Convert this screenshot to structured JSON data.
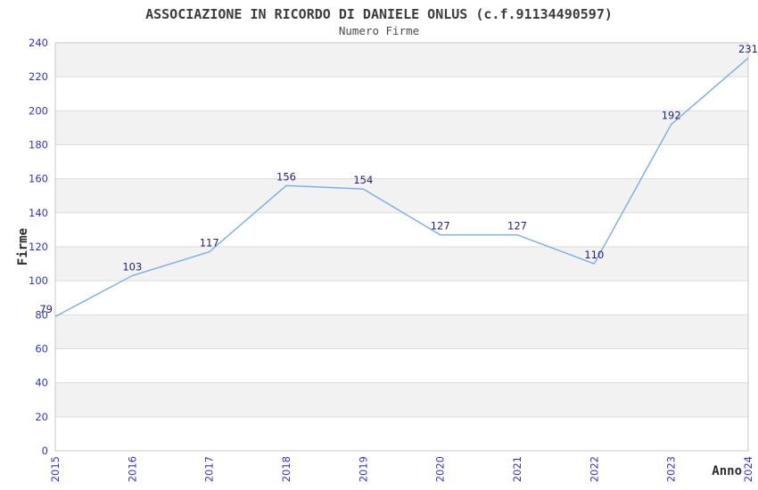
{
  "chart_data": {
    "type": "line",
    "title": "ASSOCIAZIONE IN RICORDO DI DANIELE ONLUS (c.f.91134490597)",
    "subtitle": "Numero Firme",
    "xlabel": "Anno",
    "ylabel": "Firme",
    "x": [
      2015,
      2016,
      2017,
      2018,
      2019,
      2020,
      2021,
      2022,
      2023,
      2024
    ],
    "values": [
      79,
      103,
      117,
      156,
      154,
      127,
      127,
      110,
      192,
      231
    ],
    "ylim": [
      0,
      240
    ],
    "ytick_step": 20,
    "grid": true,
    "bands_alternating": true,
    "legend": "none",
    "colors": {
      "line": "#7aade8",
      "tick_label": "#3333cc",
      "data_label": "#22227a",
      "band": "#f2f2f2",
      "gridline": "#dcdcdc",
      "axis": "#c8c8c8",
      "title": "#3c3c3c",
      "subtitle": "#4a4a4a",
      "axis_title": "#2a2a2a"
    }
  }
}
